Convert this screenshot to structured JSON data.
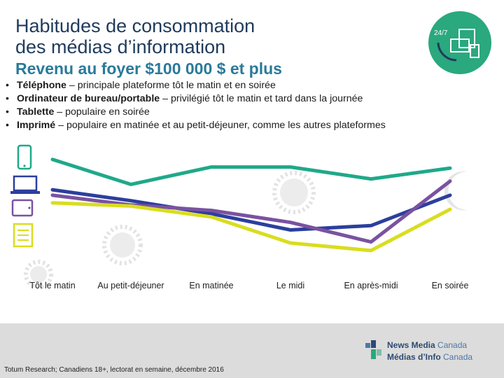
{
  "title_line1": "Habitudes de consommation",
  "title_line2": "des médias d’information",
  "subtitle": "Revenu au foyer $100 000 $ et plus",
  "bullets": [
    {
      "bold": "Téléphone",
      "rest": " – principale plateforme tôt le matin et en soirée"
    },
    {
      "bold": "Ordinateur de bureau/portable",
      "rest": " – privilégié tôt le matin et tard dans la journée"
    },
    {
      "bold": "Tablette",
      "rest": " – populaire en soirée"
    },
    {
      "bold": "Imprimé",
      "rest": " – populaire en matinée et au petit-déjeuner, comme les autres plateformes"
    }
  ],
  "badge": {
    "label": "24/7",
    "color": "#2aa87e"
  },
  "chart_data": {
    "type": "line",
    "title": "",
    "xlabel": "",
    "ylabel": "",
    "ylim": [
      0,
      100
    ],
    "categories": [
      "Tôt le matin",
      "Au petit-déjeuner",
      "En matinée",
      "Le midi",
      "En après-midi",
      "En soirée"
    ],
    "series": [
      {
        "name": "Téléphone",
        "color": "#1fa989",
        "values": [
          95,
          72,
          88,
          88,
          77,
          87
        ]
      },
      {
        "name": "Ordinateur de bureau/portable",
        "color": "#2c3f9e",
        "values": [
          67,
          57,
          45,
          30,
          34,
          62
        ]
      },
      {
        "name": "Tablette",
        "color": "#7a52a1",
        "values": [
          62,
          53,
          48,
          37,
          19,
          75
        ]
      },
      {
        "name": "Imprimé",
        "color": "#d9dd1f",
        "values": [
          55,
          52,
          42,
          18,
          11,
          49
        ]
      }
    ]
  },
  "source": "Totum Research; Canadiens 18+, lectorat en semaine, décembre 2016",
  "logo": {
    "line1_bold": "News Media",
    "line1_light": " Canada",
    "line2_bold": "Médias d’Info",
    "line2_light": " Canada"
  }
}
